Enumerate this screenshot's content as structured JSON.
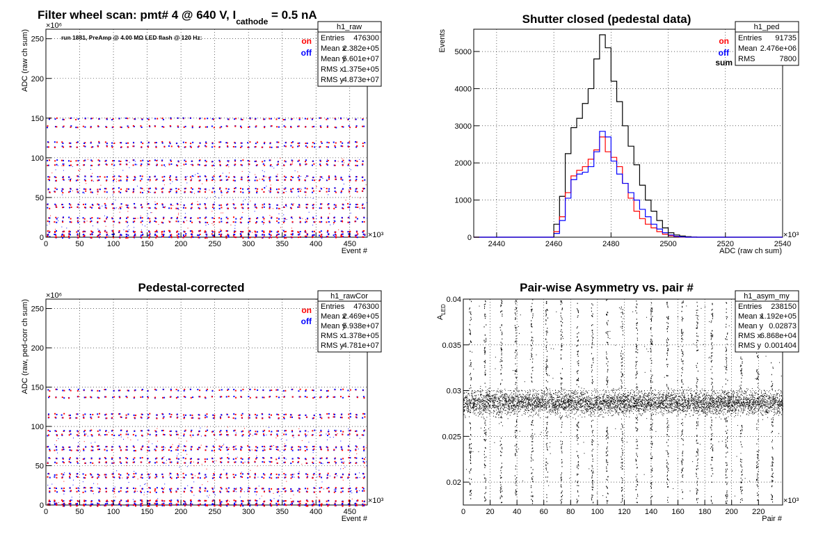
{
  "chart_data": [
    {
      "type": "scatter",
      "title_main": "Filter wheel scan: pmt#   4 @   640 V, I",
      "title_sub": "cathode",
      "title_end": "  = 0.5 nA",
      "xlabel": "Event #",
      "ylabel": "ADC (raw ch sum)",
      "x_multiplier": "×10³",
      "y_multiplier": "×10⁶",
      "xlim": [
        0,
        476
      ],
      "ylim": [
        0,
        262
      ],
      "xticks": [
        "0",
        "50",
        "100",
        "150",
        "200",
        "250",
        "300",
        "350",
        "400",
        "450"
      ],
      "yticks": [
        "0",
        "50",
        "100",
        "150",
        "200",
        "250"
      ],
      "annotation": "run 1881, PreAmp @ 4.00 MΩ  LED flash @  120 Hz:",
      "legend": [
        {
          "name": "on",
          "color": "#ff0000"
        },
        {
          "name": "off",
          "color": "#0000ff"
        }
      ],
      "stats": {
        "name": "h1_raw",
        "rows": [
          {
            "k": "Entries",
            "v": "476300"
          },
          {
            "k": "Mean x",
            "v": "2.382e+05"
          },
          {
            "k": "Mean y",
            "v": "5.601e+07"
          },
          {
            "k": "RMS x",
            "v": "1.375e+05"
          },
          {
            "k": "RMS y",
            "v": "4.873e+07"
          }
        ]
      },
      "levels": [
        150,
        140,
        120,
        115,
        97,
        92,
        77,
        73,
        62,
        58,
        42,
        38,
        25,
        20,
        8,
        4,
        1
      ],
      "period": 10.6,
      "grid": true
    },
    {
      "type": "line",
      "title": "Shutter closed (pedestal data)",
      "xlabel": "ADC (raw ch sum)",
      "ylabel": "Events",
      "x_multiplier": "×10³",
      "xlim": [
        2432,
        2540
      ],
      "ylim": [
        0,
        5600
      ],
      "xticks": [
        "2440",
        "2460",
        "2480",
        "2500",
        "2520",
        "2540"
      ],
      "yticks": [
        "0",
        "1000",
        "2000",
        "3000",
        "4000",
        "5000"
      ],
      "legend": [
        {
          "name": "on",
          "color": "#ff0000"
        },
        {
          "name": "off",
          "color": "#0000ff"
        },
        {
          "name": "sum",
          "color": "#000000"
        }
      ],
      "stats": {
        "name": "h1_ped",
        "rows": [
          {
            "k": "Entries",
            "v": "91735"
          },
          {
            "k": "Mean",
            "v": "2.476e+06"
          },
          {
            "k": "RMS",
            "v": "7800"
          }
        ]
      },
      "series": [
        {
          "name": "sum",
          "color": "#000000",
          "x": [
            2458,
            2460,
            2462,
            2464,
            2466,
            2468,
            2470,
            2472,
            2474,
            2476,
            2478,
            2480,
            2482,
            2484,
            2486,
            2488,
            2490,
            2492,
            2494,
            2496,
            2498,
            2500,
            2502,
            2504,
            2506,
            2508,
            2510
          ],
          "values": [
            0,
            350,
            1100,
            2250,
            2950,
            3200,
            3600,
            4000,
            4800,
            5450,
            5100,
            4200,
            3650,
            3000,
            2450,
            1950,
            1400,
            1000,
            700,
            450,
            250,
            120,
            60,
            30,
            15,
            5,
            0
          ]
        },
        {
          "name": "on",
          "color": "#ff0000",
          "x": [
            2458,
            2460,
            2462,
            2464,
            2466,
            2468,
            2470,
            2472,
            2474,
            2476,
            2478,
            2480,
            2482,
            2484,
            2486,
            2488,
            2490,
            2492,
            2494,
            2496,
            2498,
            2500,
            2502,
            2504,
            2506
          ],
          "values": [
            0,
            150,
            550,
            1200,
            1650,
            1800,
            1900,
            2100,
            2350,
            2700,
            2300,
            2150,
            1900,
            1450,
            1050,
            700,
            500,
            350,
            250,
            150,
            80,
            40,
            15,
            5,
            0
          ]
        },
        {
          "name": "off",
          "color": "#0000ff",
          "x": [
            2458,
            2460,
            2462,
            2464,
            2466,
            2468,
            2470,
            2472,
            2474,
            2476,
            2478,
            2480,
            2482,
            2484,
            2486,
            2488,
            2490,
            2492,
            2494,
            2496,
            2498,
            2500,
            2502,
            2504,
            2506
          ],
          "values": [
            0,
            100,
            450,
            1050,
            1550,
            1700,
            1750,
            1900,
            2300,
            2850,
            2700,
            2050,
            1700,
            1450,
            1200,
            1000,
            750,
            550,
            350,
            220,
            120,
            60,
            25,
            8,
            0
          ]
        }
      ],
      "grid": true
    },
    {
      "type": "scatter",
      "title": "Pedestal-corrected",
      "xlabel": "Event #",
      "ylabel": "ADC (raw, ped-corr ch sum)",
      "x_multiplier": "×10³",
      "y_multiplier": "×10⁶",
      "xlim": [
        0,
        476
      ],
      "ylim": [
        0,
        262
      ],
      "xticks": [
        "0",
        "50",
        "100",
        "150",
        "200",
        "250",
        "300",
        "350",
        "400",
        "450"
      ],
      "yticks": [
        "0",
        "50",
        "100",
        "150",
        "200",
        "250"
      ],
      "legend": [
        {
          "name": "on",
          "color": "#ff0000"
        },
        {
          "name": "off",
          "color": "#0000ff"
        }
      ],
      "stats": {
        "name": "h1_rawCor",
        "rows": [
          {
            "k": "Entries",
            "v": "476300"
          },
          {
            "k": "Mean x",
            "v": "2.469e+05"
          },
          {
            "k": "Mean y",
            "v": "5.938e+07"
          },
          {
            "k": "RMS x",
            "v": "1.378e+05"
          },
          {
            "k": "RMS y",
            "v": "4.781e+07"
          }
        ]
      },
      "levels": [
        147,
        138,
        116,
        112,
        95,
        90,
        75,
        71,
        60,
        55,
        40,
        36,
        22,
        18,
        6,
        2,
        0.5
      ],
      "period": 10.6,
      "grid": true
    },
    {
      "type": "scatter",
      "title": "Pair-wise Asymmetry vs. pair #",
      "xlabel": "Pair #",
      "ylabel": "A_LED",
      "ylabel_main": "A",
      "ylabel_sub": "LED",
      "x_multiplier": "×10³",
      "xlim": [
        0,
        238
      ],
      "ylim": [
        0.0175,
        0.04
      ],
      "xticks": [
        "0",
        "20",
        "40",
        "60",
        "80",
        "100",
        "120",
        "140",
        "160",
        "180",
        "200",
        "220"
      ],
      "yticks": [
        "0.02",
        "0.025",
        "0.03",
        "0.035",
        "0.04"
      ],
      "stats": {
        "name": "h1_asym_my",
        "rows": [
          {
            "k": "Entries",
            "v": "238150"
          },
          {
            "k": "Mean x",
            "v": "1.192e+05"
          },
          {
            "k": "Mean y",
            "v": "0.02873"
          },
          {
            "k": "RMS x",
            "v": "6.868e+04"
          },
          {
            "k": "RMS y",
            "v": "0.001404"
          }
        ]
      },
      "band_center": 0.0287,
      "spikes_x": [
        5,
        16,
        28,
        39,
        51,
        62,
        73,
        85,
        96,
        107,
        118,
        129,
        140,
        152,
        163,
        174,
        185,
        196,
        207,
        219,
        230
      ],
      "grid": true
    }
  ]
}
